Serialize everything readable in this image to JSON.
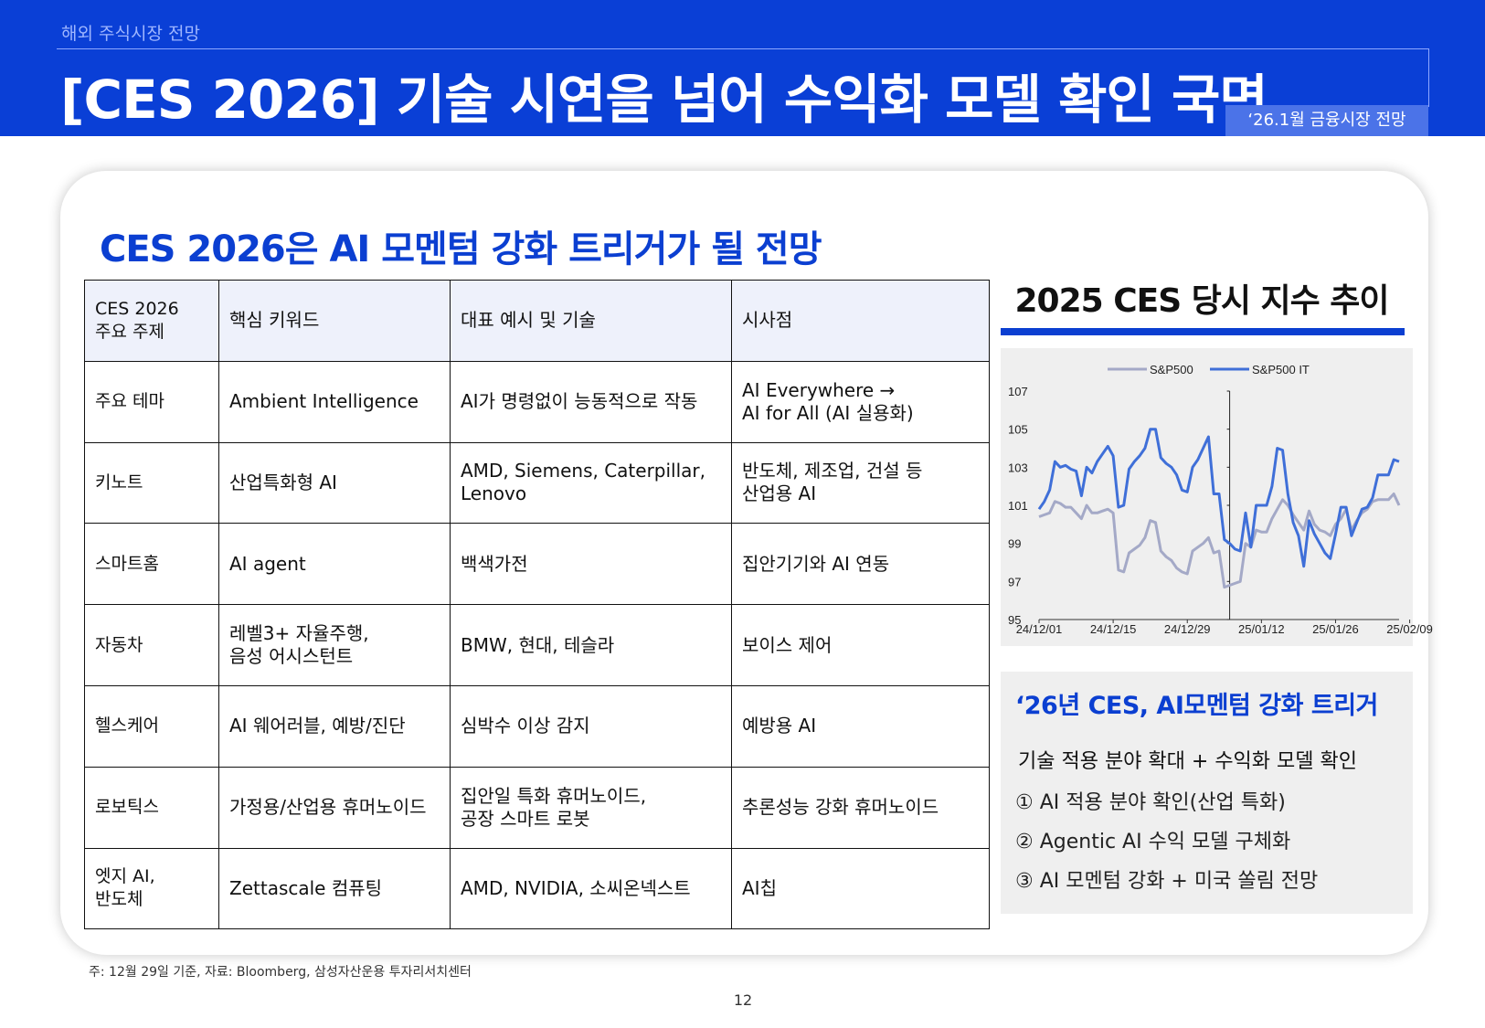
{
  "header": {
    "breadcrumb": "해외 주식시장 전망",
    "title": "[CES 2026] 기술 시연을 넘어 수익화 모델 확인 국면",
    "badge": "‘26.1월 금융시장 전망"
  },
  "main": {
    "subtitle": "CES 2026은 AI 모멘텀 강화 트리거가 될 전망"
  },
  "table": {
    "headers": [
      "CES 2026\n주요 주제",
      "핵심 키워드",
      "대표 예시 및 기술",
      "시사점"
    ],
    "rows": [
      [
        "주요 테마",
        "Ambient Intelligence",
        "AI가 명령없이 능동적으로 작동",
        "AI Everywhere →\nAI for All (AI 실용화)"
      ],
      [
        "키노트",
        "산업특화형 AI",
        "AMD, Siemens, Caterpillar,\nLenovo",
        "반도체, 제조업, 건설 등\n산업용 AI"
      ],
      [
        "스마트홈",
        "AI agent",
        "백색가전",
        "집안기기와 AI 연동"
      ],
      [
        "자동차",
        "레벨3+ 자율주행,\n음성 어시스턴트",
        "BMW, 현대, 테슬라",
        "보이스 제어"
      ],
      [
        "헬스케어",
        "AI 웨어러블, 예방/진단",
        "심박수 이상 감지",
        "예방용 AI"
      ],
      [
        "로보틱스",
        "가정용/산업용 휴머노이드",
        "집안일 특화 휴머노이드,\n공장 스마트 로봇",
        "추론성능 강화 휴머노이드"
      ],
      [
        "엣지 AI,\n반도체",
        "Zettascale 컴퓨팅",
        "AMD, NVIDIA, 소씨온넥스트",
        "AI칩"
      ]
    ]
  },
  "side": {
    "chart_title": "2025 CES 당시 지수 추이"
  },
  "chart_data": {
    "type": "line",
    "title": "2025 CES 당시 지수 추이",
    "xlabel": "",
    "ylabel": "",
    "ylim": [
      95,
      107
    ],
    "yticks": [
      95,
      97,
      99,
      101,
      103,
      105,
      107
    ],
    "x_tick_labels": [
      "24/12/01",
      "24/12/15",
      "24/12/29",
      "25/01/12",
      "25/01/26",
      "25/02/09"
    ],
    "event_marker_date": "25/01/06",
    "legend_position": "top",
    "colors": {
      "S&P500": "#a4a9c7",
      "S&P500 IT": "#3f6fd8"
    },
    "series": [
      {
        "name": "S&P500",
        "values": [
          100.4,
          100.5,
          100.6,
          101.2,
          101.1,
          100.9,
          100.9,
          100.6,
          100.3,
          101.0,
          100.6,
          100.6,
          100.7,
          100.8,
          100.6,
          97.6,
          97.5,
          98.5,
          98.7,
          98.9,
          99.3,
          100.2,
          100.1,
          98.6,
          98.3,
          98.1,
          97.7,
          97.5,
          97.4,
          98.6,
          98.8,
          99.0,
          99.3,
          98.5,
          98.6,
          96.7,
          96.8,
          96.9,
          97.0,
          99.0,
          98.8,
          99.7,
          99.6,
          99.6,
          100.3,
          100.8,
          101.3,
          101.0,
          100.5,
          100.1,
          99.7,
          100.7,
          100.0,
          99.7,
          99.6,
          99.4,
          100.0,
          100.3,
          100.8,
          99.7,
          100.2,
          100.6,
          100.8,
          101.2,
          101.3,
          101.3,
          101.3,
          101.6,
          101.0
        ]
      },
      {
        "name": "S&P500 IT",
        "values": [
          100.8,
          101.2,
          101.8,
          103.3,
          103.0,
          103.1,
          102.9,
          102.8,
          101.5,
          103.0,
          102.7,
          103.3,
          103.7,
          104.1,
          103.6,
          100.9,
          101.0,
          102.9,
          103.3,
          103.6,
          104.0,
          105.0,
          105.0,
          103.5,
          103.2,
          103.0,
          102.6,
          101.8,
          101.7,
          103.0,
          103.4,
          104.0,
          104.6,
          101.6,
          101.6,
          99.2,
          99.0,
          98.7,
          98.6,
          100.6,
          98.8,
          101.0,
          101.0,
          101.0,
          102.0,
          104.0,
          103.9,
          101.6,
          100.1,
          99.4,
          97.8,
          100.2,
          99.5,
          99.0,
          98.5,
          98.2,
          99.5,
          100.9,
          100.9,
          99.4,
          100.1,
          100.8,
          100.9,
          101.4,
          102.6,
          102.6,
          102.6,
          103.4,
          103.3
        ]
      }
    ]
  },
  "summary": {
    "title": "‘26년 CES, AI모멘텀 강화 트리거",
    "subtitle": "기술 적용 분야 확대 + 수익화 모델 확인",
    "items": [
      "① AI 적용 분야 확인(산업 특화)",
      "② Agentic AI 수익 모델 구체화",
      "③ AI 모멘텀 강화 + 미국 쏠림 전망"
    ]
  },
  "footer": {
    "note": "주: 12월 29일 기준, 자료: Bloomberg, 삼성자산운용 투자리서치센터",
    "page": "12"
  }
}
